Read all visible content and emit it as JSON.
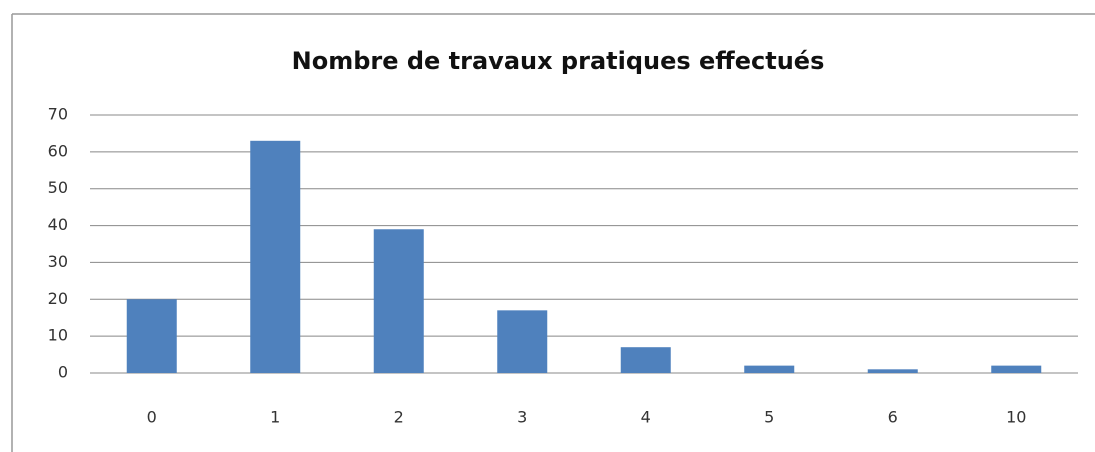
{
  "chart_data": {
    "type": "bar",
    "title": "Nombre de travaux pratiques effectués",
    "categories": [
      "0",
      "1",
      "2",
      "3",
      "4",
      "5",
      "6",
      "10"
    ],
    "values": [
      20,
      63,
      39,
      17,
      7,
      2,
      1,
      2
    ],
    "color": "#4f81bd",
    "ylim": [
      0,
      70
    ],
    "yticks": [
      0,
      10,
      20,
      30,
      40,
      50,
      60,
      70
    ],
    "grid": true
  }
}
